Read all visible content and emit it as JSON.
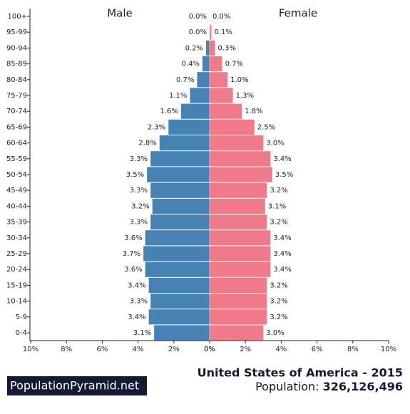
{
  "chart_data": {
    "type": "pyramid",
    "categories": [
      "100+",
      "95-99",
      "90-94",
      "85-89",
      "80-84",
      "75-79",
      "70-74",
      "65-69",
      "60-64",
      "55-59",
      "50-54",
      "45-49",
      "40-44",
      "35-39",
      "30-34",
      "25-29",
      "20-24",
      "15-19",
      "10-14",
      "5-9",
      "0-4"
    ],
    "series": [
      {
        "name": "Male",
        "color": "#4682b4",
        "values": [
          0.0,
          0.0,
          0.2,
          0.4,
          0.7,
          1.1,
          1.6,
          2.3,
          2.8,
          3.3,
          3.5,
          3.3,
          3.2,
          3.3,
          3.6,
          3.7,
          3.6,
          3.4,
          3.3,
          3.4,
          3.1
        ],
        "value_labels": [
          "0.0%",
          "0.0%",
          "0.2%",
          "0.4%",
          "0.7%",
          "1.1%",
          "1.6%",
          "2.3%",
          "2.8%",
          "3.3%",
          "3.5%",
          "3.3%",
          "3.2%",
          "3.3%",
          "3.6%",
          "3.7%",
          "3.6%",
          "3.4%",
          "3.3%",
          "3.4%",
          "3.1%"
        ]
      },
      {
        "name": "Female",
        "color": "#f07a8a",
        "values": [
          0.0,
          0.1,
          0.3,
          0.7,
          1.0,
          1.3,
          1.8,
          2.5,
          3.0,
          3.4,
          3.5,
          3.2,
          3.1,
          3.2,
          3.4,
          3.4,
          3.4,
          3.2,
          3.2,
          3.2,
          3.0
        ],
        "value_labels": [
          "0.0%",
          "0.1%",
          "0.3%",
          "0.7%",
          "1.0%",
          "1.3%",
          "1.8%",
          "2.5%",
          "3.0%",
          "3.4%",
          "3.5%",
          "3.2%",
          "3.1%",
          "3.2%",
          "3.4%",
          "3.4%",
          "3.4%",
          "3.2%",
          "3.2%",
          "3.2%",
          "3.0%"
        ]
      }
    ],
    "xlim": [
      0,
      10
    ],
    "xticks": [
      {
        "value": 0,
        "label": "0%"
      },
      {
        "value": 2,
        "label": "2%"
      },
      {
        "value": 4,
        "label": "4%"
      },
      {
        "value": 6,
        "label": "6%"
      },
      {
        "value": 8,
        "label": "8%"
      },
      {
        "value": 10,
        "label": "10%"
      }
    ]
  },
  "footer": {
    "brand": "PopulationPyramid.net",
    "title": "United States of America - 2015",
    "population_label": "Population:",
    "population": "326,126,496"
  }
}
